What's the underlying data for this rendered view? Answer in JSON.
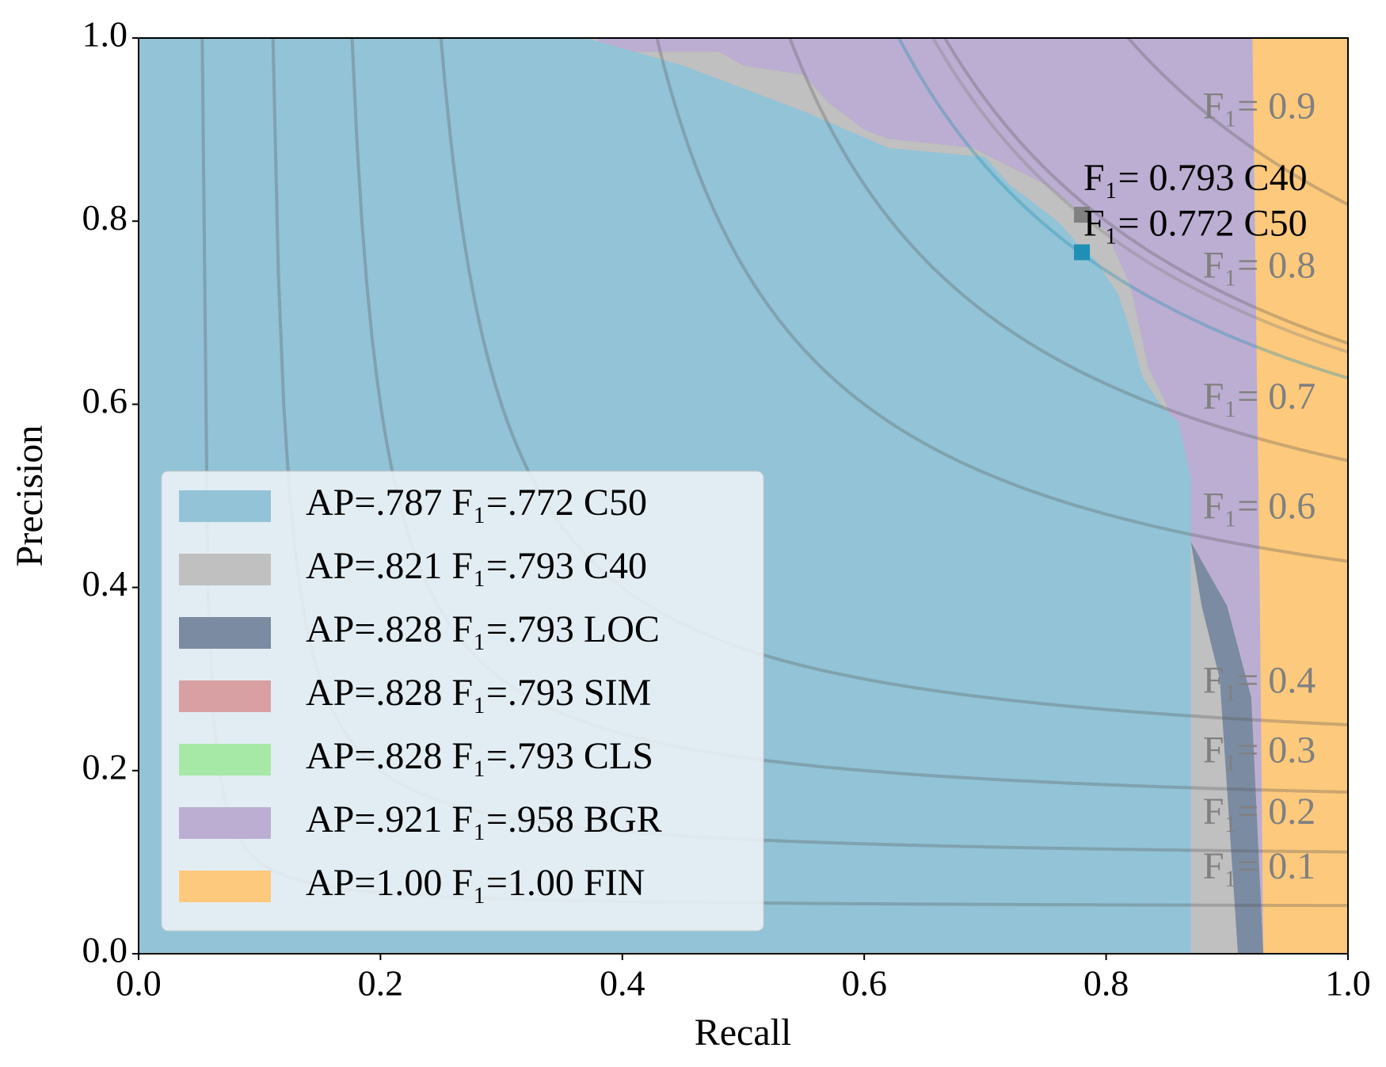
{
  "chart_data": {
    "type": "area",
    "xlabel": "Recall",
    "ylabel": "Precision",
    "xlim": [
      0,
      1
    ],
    "ylim": [
      0,
      1
    ],
    "xticks": [
      {
        "value": 0,
        "label": "0.0"
      },
      0.2,
      0.4,
      0.6,
      0.8,
      {
        "value": 1,
        "label": "1.0"
      }
    ],
    "yticks": [
      {
        "value": 0,
        "label": "0.0"
      },
      0.2,
      0.4,
      0.6,
      0.8,
      {
        "value": 1,
        "label": "1.0"
      }
    ],
    "legend": "lower left",
    "series": [
      {
        "name": "AP=.787 F₁=.772 C50",
        "color": "#92c3d6",
        "x": [
          0,
          0.37,
          0.45,
          0.55,
          0.62,
          0.7,
          0.72,
          0.74,
          0.76,
          0.78,
          0.79,
          0.81,
          0.82,
          0.83,
          0.845,
          0.86,
          0.87,
          0.87
        ],
        "values": [
          1,
          1,
          0.97,
          0.92,
          0.88,
          0.87,
          0.84,
          0.82,
          0.8,
          0.77,
          0.76,
          0.72,
          0.68,
          0.63,
          0.6,
          0.58,
          0.52,
          0
        ]
      },
      {
        "name": "AP=.821 F₁=.793 C40",
        "color": "#c0c0c0",
        "x": [
          0,
          0.38,
          0.38,
          0.48,
          0.5,
          0.55,
          0.57,
          0.6,
          0.62,
          0.69,
          0.72,
          0.75,
          0.78,
          0.8,
          0.81,
          0.82,
          0.825,
          0.835,
          0.85,
          0.857,
          0.87,
          0.879,
          0.894,
          0.909
        ],
        "values": [
          1,
          1,
          0.985,
          0.985,
          0.97,
          0.96,
          0.93,
          0.9,
          0.89,
          0.88,
          0.86,
          0.84,
          0.81,
          0.79,
          0.76,
          0.73,
          0.7,
          0.64,
          0.6,
          0.55,
          0.45,
          0.38,
          0.3,
          0
        ]
      },
      {
        "name": "AP=.828 F₁=.793 LOC",
        "color": "#7b8ba1",
        "x": [
          0,
          0.38,
          0.38,
          0.48,
          0.5,
          0.55,
          0.57,
          0.6,
          0.62,
          0.69,
          0.72,
          0.75,
          0.78,
          0.8,
          0.81,
          0.82,
          0.825,
          0.835,
          0.85,
          0.857,
          0.87,
          0.9,
          0.92,
          0.93
        ],
        "values": [
          1,
          1,
          0.985,
          0.985,
          0.97,
          0.96,
          0.93,
          0.9,
          0.89,
          0.88,
          0.86,
          0.84,
          0.81,
          0.79,
          0.76,
          0.73,
          0.7,
          0.64,
          0.6,
          0.55,
          0.45,
          0.38,
          0.28,
          0
        ]
      },
      {
        "name": "AP=.828 F₁=.793 SIM",
        "color": "#d8a0a2",
        "x": [
          0,
          0.38,
          0.38,
          0.48,
          0.5,
          0.55,
          0.57,
          0.6,
          0.62,
          0.69,
          0.72,
          0.75,
          0.78,
          0.8,
          0.81,
          0.82,
          0.825,
          0.835,
          0.85,
          0.857,
          0.87,
          0.9,
          0.92,
          0.93
        ],
        "values": [
          1,
          1,
          0.985,
          0.985,
          0.97,
          0.96,
          0.93,
          0.9,
          0.89,
          0.88,
          0.86,
          0.84,
          0.81,
          0.79,
          0.76,
          0.73,
          0.7,
          0.64,
          0.6,
          0.55,
          0.45,
          0.38,
          0.28,
          0
        ]
      },
      {
        "name": "AP=.828 F₁=.793 CLS",
        "color": "#a6e8a6",
        "x": [
          0,
          0.38,
          0.38,
          0.48,
          0.5,
          0.55,
          0.57,
          0.6,
          0.62,
          0.69,
          0.72,
          0.75,
          0.78,
          0.8,
          0.81,
          0.82,
          0.825,
          0.835,
          0.85,
          0.857,
          0.87,
          0.9,
          0.92,
          0.93
        ],
        "values": [
          1,
          1,
          0.985,
          0.985,
          0.97,
          0.96,
          0.93,
          0.9,
          0.89,
          0.88,
          0.86,
          0.84,
          0.81,
          0.79,
          0.76,
          0.73,
          0.7,
          0.64,
          0.6,
          0.55,
          0.45,
          0.38,
          0.28,
          0
        ]
      },
      {
        "name": "AP=.921 F₁=.958 BGR",
        "color": "#bcaed2",
        "x": [
          0,
          0.921,
          0.927,
          0.93
        ],
        "values": [
          1,
          1,
          0.4,
          0
        ]
      },
      {
        "name": "AP=1.00 F₁=1.00 FIN",
        "color": "#fdc97c",
        "x": [
          0,
          1,
          1
        ],
        "values": [
          1,
          1,
          0
        ]
      }
    ],
    "f1_isolines": [
      {
        "value": 0.1,
        "label": "F₁= 0.1"
      },
      {
        "value": 0.2,
        "label": "F₁= 0.2"
      },
      {
        "value": 0.3,
        "label": "F₁= 0.3"
      },
      {
        "value": 0.4,
        "label": "F₁= 0.4"
      },
      {
        "value": 0.6,
        "label": "F₁= 0.6"
      },
      {
        "value": 0.7,
        "label": "F₁= 0.7"
      },
      {
        "value": 0.8,
        "label": "F₁= 0.8"
      },
      {
        "value": 0.9,
        "label": "F₁= 0.9"
      }
    ],
    "markers": [
      {
        "x": 0.78,
        "y": 0.807,
        "f1": 0.793,
        "color": "#808080",
        "label": "F₁= 0.793 C40"
      },
      {
        "x": 0.78,
        "y": 0.766,
        "f1": 0.772,
        "color": "#1f8fb4",
        "label": "F₁= 0.772 C50"
      }
    ]
  }
}
